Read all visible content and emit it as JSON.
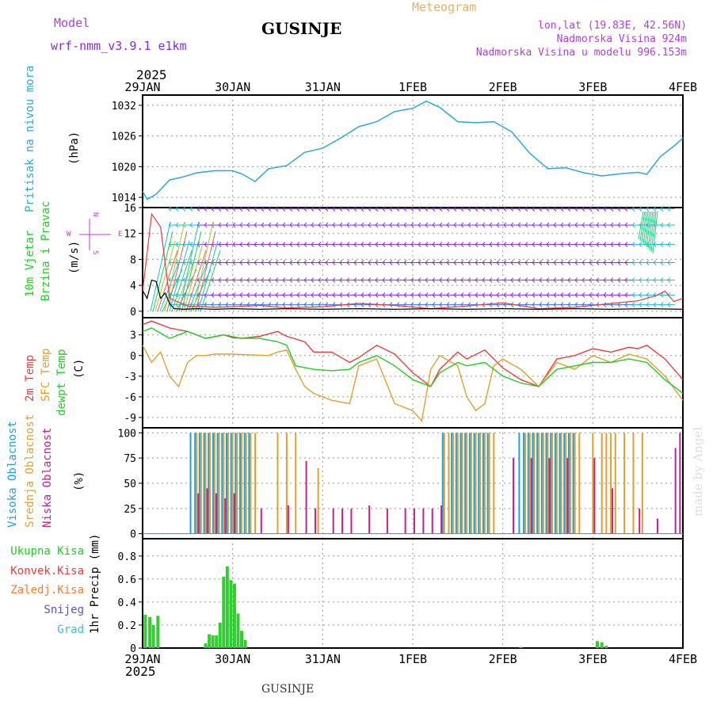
{
  "header": {
    "model_label": "Model",
    "model_name": "wrf-nmm_v3.9.1 e1km",
    "title": "GUSINJE",
    "subtitle": "Meteogram",
    "coords": "lon,lat (19.83E, 42.56N)",
    "elevation": "Nadmorska Visina 924m",
    "model_elevation": "Nadmorska Visina u modelu 996.153m",
    "year_top": "2025",
    "year_bottom": "2025",
    "footer_title": "GUSINJE",
    "watermark": "made by Angel"
  },
  "colors": {
    "pressure": "#29a8e0",
    "temp2m": "#ee3b3b",
    "sfc_temp": "#e0a030",
    "dewpt": "#22cc22",
    "cloud_high": "#1e9fe0",
    "cloud_mid": "#e0a030",
    "cloud_low": "#c8208c",
    "precip": "#33cc33",
    "wind_purple": "#8a2be2",
    "wind_cyan": "#1fb8d8",
    "wind_blue": "#3a6ee8",
    "title_orange": "#e8b060",
    "label_violet": "#b040d8"
  },
  "date_ticks": [
    "29JAN",
    "30JAN",
    "31JAN",
    "1FEB",
    "2FEB",
    "3FEB",
    "4FEB"
  ],
  "chart_data": [
    {
      "type": "line",
      "name": "pressure",
      "ylabel": "Pritisak na nivou mora",
      "unit": "(hPa)",
      "ylim": [
        1012,
        1034
      ],
      "yticks": [
        1014,
        1020,
        1026,
        1032
      ],
      "x_days": [
        0,
        0.05,
        0.15,
        0.3,
        0.45,
        0.6,
        0.8,
        1.0,
        1.1,
        1.25,
        1.4,
        1.6,
        1.8,
        2.0,
        2.2,
        2.4,
        2.6,
        2.8,
        3.0,
        3.15,
        3.3,
        3.5,
        3.7,
        3.9,
        4.1,
        4.3,
        4.5,
        4.7,
        4.9,
        5.1,
        5.3,
        5.5,
        5.6,
        5.75,
        5.9,
        6.0
      ],
      "values": [
        1015.2,
        1013.6,
        1014.6,
        1017.4,
        1018.0,
        1018.8,
        1019.2,
        1019.2,
        1018.6,
        1017.1,
        1019.6,
        1020.2,
        1022.8,
        1023.6,
        1025.6,
        1027.8,
        1028.8,
        1030.8,
        1031.4,
        1032.8,
        1031.6,
        1028.8,
        1028.6,
        1028.8,
        1026.8,
        1022.6,
        1019.6,
        1019.8,
        1018.8,
        1018.2,
        1018.6,
        1018.9,
        1018.5,
        1022.0,
        1024.0,
        1025.6
      ]
    },
    {
      "type": "wind",
      "name": "wind",
      "ylabel": [
        "10m Vjetar",
        "Brzina i Pravac"
      ],
      "unit": "(m/s)",
      "compass": [
        "N",
        "W",
        "E",
        "S"
      ],
      "ylim": [
        -1,
        16
      ],
      "yticks": [
        0,
        4,
        8,
        12,
        16
      ],
      "barb_levels": [
        1,
        2.5,
        4.8,
        7.5,
        10.3,
        13.3,
        15.8
      ],
      "speed_red_x": [
        0,
        0.1,
        0.2,
        0.3,
        0.5,
        0.8,
        1.0,
        1.3,
        1.6,
        2.0,
        2.4,
        2.8,
        3.2,
        3.6,
        4.0,
        4.4,
        4.8,
        5.2,
        5.5,
        5.7,
        5.8,
        5.9,
        6.0
      ],
      "speed_red": [
        3,
        15,
        13,
        2,
        0.8,
        0.6,
        0.7,
        0.9,
        0.5,
        0.7,
        1.2,
        0.9,
        0.4,
        0.8,
        1.3,
        0.4,
        0.6,
        1.2,
        1.6,
        2.4,
        3.1,
        1.5,
        2.0
      ],
      "speed_black_x": [
        0,
        0.05,
        0.1,
        0.15,
        0.2,
        0.25,
        0.3,
        0.35,
        0.45,
        0.6,
        0.8,
        1.0,
        1.3,
        1.6,
        2.0,
        2.4,
        2.8,
        3.2,
        3.6,
        4.0,
        4.4,
        4.8,
        5.2,
        5.6,
        6.0
      ],
      "speed_black": [
        3.2,
        2.0,
        4.8,
        4.6,
        2.0,
        2.8,
        1.2,
        0.4,
        0.3,
        0.4,
        0.3,
        0.4,
        0.3,
        0.4,
        0.3,
        0.4,
        0.3,
        0.4,
        0.3,
        0.4,
        0.3,
        0.4,
        0.3,
        0.4,
        0.3
      ]
    },
    {
      "type": "line",
      "name": "temperature",
      "ylabel": [
        "2m Temp",
        "SFC Temp",
        "dewpt Temp"
      ],
      "unit": "(C)",
      "ylim": [
        -10.5,
        5.5
      ],
      "yticks": [
        3,
        0,
        -3,
        -6,
        -9
      ],
      "series": [
        {
          "name": "2m Temp",
          "x": [
            0,
            0.1,
            0.3,
            0.5,
            0.7,
            0.9,
            1.0,
            1.1,
            1.3,
            1.5,
            1.6,
            1.8,
            1.9,
            2.1,
            2.3,
            2.4,
            2.6,
            2.8,
            3.0,
            3.2,
            3.3,
            3.5,
            3.6,
            3.8,
            4.0,
            4.2,
            4.4,
            4.6,
            4.8,
            5.0,
            5.2,
            5.4,
            5.5,
            5.6,
            5.8,
            6.0
          ],
          "values": [
            4.5,
            5.0,
            4.0,
            3.5,
            2.5,
            3.0,
            2.6,
            2.5,
            2.8,
            3.5,
            2.8,
            2.0,
            0.5,
            0.5,
            -1.0,
            -0.3,
            1.5,
            0.2,
            -2.5,
            -4.5,
            -2.0,
            0.5,
            -0.5,
            0.8,
            -1.8,
            -3.5,
            -4.5,
            -0.5,
            0.0,
            1.0,
            0.5,
            1.2,
            1.0,
            1.5,
            -0.5,
            -3.5
          ]
        },
        {
          "name": "SFC Temp",
          "x": [
            0,
            0.1,
            0.2,
            0.3,
            0.4,
            0.5,
            0.6,
            0.7,
            0.8,
            1.0,
            1.2,
            1.4,
            1.5,
            1.6,
            1.7,
            1.8,
            1.9,
            2.1,
            2.3,
            2.4,
            2.6,
            2.8,
            3.0,
            3.1,
            3.2,
            3.3,
            3.5,
            3.6,
            3.7,
            3.8,
            3.9,
            4.0,
            4.2,
            4.4,
            4.6,
            4.8,
            5.0,
            5.2,
            5.4,
            5.6,
            5.8,
            6.0
          ],
          "values": [
            1.5,
            -1.0,
            0.5,
            -3.0,
            -4.5,
            -1.0,
            0.0,
            0.0,
            0.2,
            0.2,
            0.1,
            0.0,
            0.5,
            0.8,
            -2.0,
            -4.5,
            -5.5,
            -6.5,
            -7.0,
            -1.5,
            -0.5,
            -7.0,
            -8.0,
            -9.5,
            -2.0,
            0.0,
            -1.5,
            -6.0,
            -8.0,
            -7.0,
            -1.5,
            -0.5,
            -2.0,
            -4.5,
            -1.0,
            -2.0,
            0.0,
            -1.0,
            0.2,
            -0.5,
            -3.0,
            -6.5
          ]
        },
        {
          "name": "dewpt Temp",
          "x": [
            0,
            0.1,
            0.3,
            0.5,
            0.7,
            0.9,
            1.1,
            1.3,
            1.5,
            1.6,
            1.7,
            1.9,
            2.1,
            2.3,
            2.4,
            2.6,
            2.8,
            3.0,
            3.2,
            3.3,
            3.5,
            3.6,
            3.8,
            4.0,
            4.2,
            4.4,
            4.6,
            4.8,
            5.0,
            5.2,
            5.4,
            5.6,
            5.8,
            6.0
          ],
          "values": [
            3.5,
            4.0,
            2.5,
            3.5,
            2.5,
            3.0,
            2.5,
            2.5,
            2.0,
            1.5,
            -1.5,
            -2.0,
            -2.2,
            -2.0,
            -1.0,
            0.0,
            -1.5,
            -3.5,
            -4.5,
            -2.5,
            -1.0,
            -1.5,
            -1.0,
            -3.0,
            -4.0,
            -4.5,
            -2.0,
            -1.5,
            -1.0,
            -1.0,
            -0.5,
            -1.0,
            -3.5,
            -5.5
          ]
        }
      ]
    },
    {
      "type": "bar",
      "name": "cloud",
      "ylabel": [
        "Visoka Oblacnost",
        "Srednja Oblacnost",
        "Niska Oblacnost"
      ],
      "unit": "(%)",
      "ylim": [
        -5,
        105
      ],
      "yticks": [
        100,
        75,
        50,
        25,
        0
      ],
      "series": [
        {
          "name": "Visoka Oblacnost",
          "x": [
            0.55,
            0.6,
            0.65,
            0.7,
            0.75,
            0.8,
            0.85,
            0.9,
            0.95,
            1.0,
            1.05,
            1.1,
            1.15,
            1.2,
            3.35,
            3.45,
            3.5,
            3.55,
            3.6,
            3.65,
            3.7,
            3.75,
            3.8,
            3.85,
            4.2,
            4.25,
            4.3,
            4.35,
            4.4,
            4.45,
            4.5,
            4.55,
            4.6,
            4.65,
            4.7,
            4.75,
            4.8
          ],
          "values": [
            100,
            100,
            100,
            100,
            100,
            100,
            100,
            100,
            100,
            100,
            100,
            100,
            100,
            100,
            100,
            100,
            100,
            100,
            100,
            100,
            100,
            100,
            100,
            100,
            100,
            100,
            100,
            100,
            100,
            100,
            100,
            100,
            100,
            100,
            100,
            100,
            100
          ]
        },
        {
          "name": "Srednja Oblacnost",
          "x": [
            0.6,
            0.65,
            0.7,
            0.75,
            0.8,
            0.85,
            0.9,
            0.95,
            1.0,
            1.05,
            1.1,
            1.15,
            1.2,
            1.25,
            1.5,
            1.6,
            1.7,
            1.95,
            3.35,
            3.4,
            3.45,
            3.5,
            3.55,
            3.6,
            3.65,
            3.7,
            3.75,
            3.8,
            3.85,
            3.9,
            4.25,
            4.3,
            4.35,
            4.4,
            4.45,
            4.5,
            4.55,
            4.6,
            4.65,
            4.7,
            4.75,
            4.8,
            4.85,
            5.0,
            5.1,
            5.15,
            5.2,
            5.25,
            5.35,
            5.45,
            5.55
          ],
          "values": [
            100,
            100,
            100,
            100,
            100,
            100,
            100,
            100,
            100,
            100,
            100,
            100,
            100,
            100,
            100,
            100,
            100,
            65,
            100,
            100,
            100,
            100,
            100,
            100,
            100,
            100,
            100,
            100,
            100,
            100,
            100,
            100,
            100,
            100,
            100,
            100,
            100,
            100,
            100,
            100,
            100,
            100,
            100,
            100,
            100,
            100,
            100,
            100,
            100,
            100,
            100
          ]
        },
        {
          "name": "Niska Oblacnost",
          "x": [
            0.6,
            0.7,
            0.8,
            0.9,
            1.0,
            1.3,
            1.6,
            1.8,
            1.9,
            2.1,
            2.2,
            2.3,
            2.5,
            2.7,
            2.9,
            3.0,
            3.1,
            3.2,
            3.3,
            4.1,
            4.3,
            4.5,
            4.7,
            5.0,
            5.2,
            5.5,
            5.7,
            5.9,
            5.95
          ],
          "values": [
            40,
            45,
            40,
            35,
            40,
            25,
            28,
            72,
            25,
            25,
            25,
            25,
            28,
            25,
            25,
            25,
            25,
            25,
            28,
            75,
            75,
            75,
            75,
            75,
            45,
            25,
            15,
            85,
            100
          ]
        }
      ]
    },
    {
      "type": "bar",
      "name": "precip",
      "ylabel": [
        "Ukupna Kisa",
        "Konvek.Kisa",
        "Zaledj.Kisa",
        "Snijeg",
        "Grad"
      ],
      "unit": "1hr Precip (mm)",
      "ylim": [
        0,
        0.95
      ],
      "yticks": [
        0.8,
        0.6,
        0.4,
        0.2,
        0.0
      ],
      "x": [
        0.03,
        0.08,
        0.12,
        0.17,
        0.7,
        0.74,
        0.78,
        0.82,
        0.86,
        0.9,
        0.94,
        0.98,
        1.02,
        1.06,
        1.1,
        1.14,
        4.2,
        5.05,
        5.1,
        5.15
      ],
      "values": [
        0.29,
        0.27,
        0.2,
        0.28,
        0.04,
        0.12,
        0.11,
        0.11,
        0.22,
        0.62,
        0.71,
        0.59,
        0.56,
        0.3,
        0.15,
        0.07,
        0.01,
        0.06,
        0.05,
        0.02
      ]
    }
  ]
}
